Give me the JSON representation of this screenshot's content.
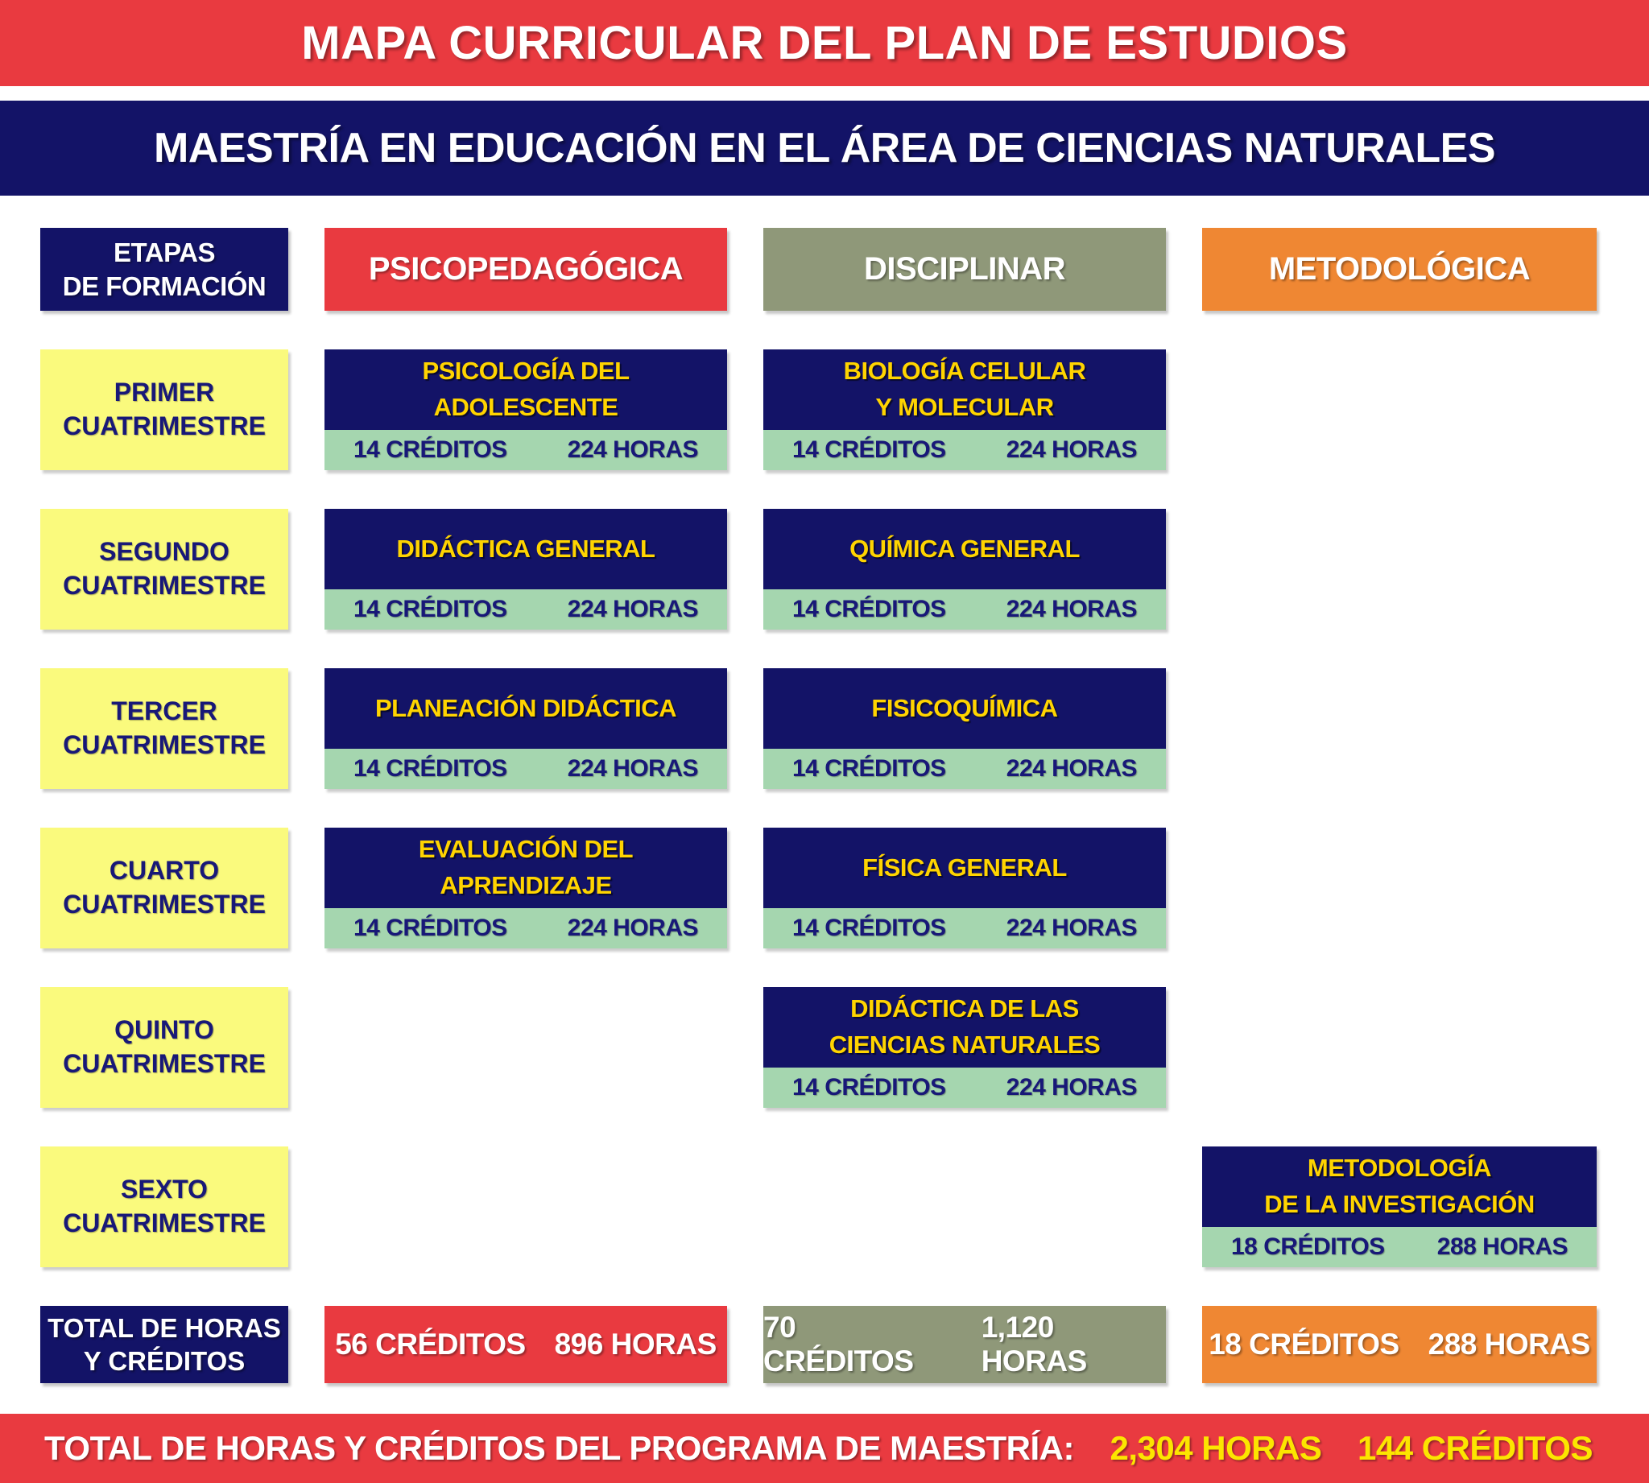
{
  "header": {
    "title": "MAPA CURRICULAR DEL PLAN DE ESTUDIOS",
    "subtitle": "MAESTRÍA EN EDUCACIÓN EN EL ÁREA DE CIENCIAS NATURALES"
  },
  "columns": [
    {
      "id": "etapas",
      "label": "ETAPAS\nDE FORMACIÓN",
      "color": "#131367"
    },
    {
      "id": "psicopedagogica",
      "label": "PSICOPEDAGÓGICA",
      "color": "#E93A40"
    },
    {
      "id": "disciplinar",
      "label": "DISCIPLINAR",
      "color": "#8F9879"
    },
    {
      "id": "metodologica",
      "label": "METODOLÓGICA",
      "color": "#EF8733"
    }
  ],
  "rows": [
    {
      "stage": "PRIMER\nCUATRIMESTRE",
      "psicopedagogica": {
        "title": "PSICOLOGÍA DEL ADOLESCENTE",
        "credits": "14 CRÉDITOS",
        "hours": "224 HORAS"
      },
      "disciplinar": {
        "title": "BIOLOGÍA CELULAR\nY MOLECULAR",
        "credits": "14 CRÉDITOS",
        "hours": "224 HORAS"
      }
    },
    {
      "stage": "SEGUNDO\nCUATRIMESTRE",
      "psicopedagogica": {
        "title": "DIDÁCTICA GENERAL",
        "credits": "14 CRÉDITOS",
        "hours": "224 HORAS"
      },
      "disciplinar": {
        "title": "QUÍMICA GENERAL",
        "credits": "14 CRÉDITOS",
        "hours": "224 HORAS"
      }
    },
    {
      "stage": "TERCER\nCUATRIMESTRE",
      "psicopedagogica": {
        "title": "PLANEACIÓN DIDÁCTICA",
        "credits": "14 CRÉDITOS",
        "hours": "224 HORAS"
      },
      "disciplinar": {
        "title": "FISICOQUÍMICA",
        "credits": "14 CRÉDITOS",
        "hours": "224 HORAS"
      }
    },
    {
      "stage": "CUARTO\nCUATRIMESTRE",
      "psicopedagogica": {
        "title": "EVALUACIÓN DEL APRENDIZAJE",
        "credits": "14 CRÉDITOS",
        "hours": "224 HORAS"
      },
      "disciplinar": {
        "title": "FÍSICA GENERAL",
        "credits": "14 CRÉDITOS",
        "hours": "224 HORAS"
      }
    },
    {
      "stage": "QUINTO\nCUATRIMESTRE",
      "disciplinar": {
        "title": "DIDÁCTICA DE LAS\nCIENCIAS NATURALES",
        "credits": "14 CRÉDITOS",
        "hours": "224 HORAS"
      }
    },
    {
      "stage": "SEXTO\nCUATRIMESTRE",
      "metodologica": {
        "title": "METODOLOGÍA\nDE LA INVESTIGACIÓN",
        "credits": "18 CRÉDITOS",
        "hours": "288 HORAS"
      }
    }
  ],
  "totals": {
    "label": "TOTAL DE HORAS\nY CRÉDITOS",
    "psicopedagogica": {
      "credits": "56 CRÉDITOS",
      "hours": "896 HORAS"
    },
    "disciplinar": {
      "credits": "70 CRÉDITOS",
      "hours": "1,120 HORAS"
    },
    "metodologica": {
      "credits": "18 CRÉDITOS",
      "hours": "288 HORAS"
    }
  },
  "footer": {
    "label": "TOTAL DE HORAS Y CRÉDITOS DEL PROGRAMA DE MAESTRÍA:",
    "hours": "2,304 HORAS",
    "credits": "144 CRÉDITOS"
  },
  "colors": {
    "red": "#E93A40",
    "navy": "#131367",
    "stage_yellow": "#FAFA7D",
    "meta_green": "#A5D6AF",
    "olive": "#8F9879",
    "orange": "#EF8733",
    "title_gold": "#FFD400",
    "banner_yellow": "#FCE500"
  }
}
